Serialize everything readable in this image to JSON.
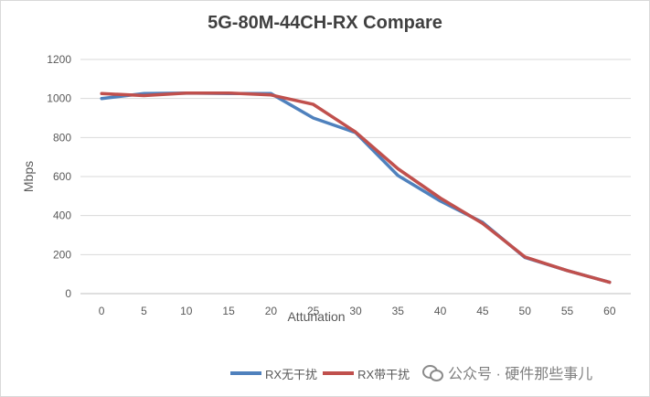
{
  "chart_data": {
    "type": "line",
    "title": "5G-80M-44CH-RX Compare",
    "xlabel": "Attunation",
    "ylabel": "Mbps",
    "ylim": [
      0,
      1200
    ],
    "yticks": [
      0,
      200,
      400,
      600,
      800,
      1000,
      1200
    ],
    "grid": true,
    "legend_position": "bottom",
    "categories": [
      "0",
      "5",
      "10",
      "15",
      "20",
      "25",
      "30",
      "35",
      "40",
      "45",
      "50",
      "55",
      "60"
    ],
    "series": [
      {
        "name": "RX无干扰",
        "color": "#4f81bd",
        "values": [
          1000,
          1025,
          1028,
          1025,
          1025,
          900,
          825,
          605,
          475,
          365,
          185,
          118,
          58
        ]
      },
      {
        "name": "RX带干扰",
        "color": "#c0504d",
        "values": [
          1025,
          1015,
          1028,
          1028,
          1018,
          970,
          828,
          640,
          490,
          360,
          188,
          118,
          58
        ]
      }
    ]
  },
  "watermark": {
    "icon": "wechat-icon",
    "text": "公众号 · 硬件那些事儿"
  }
}
